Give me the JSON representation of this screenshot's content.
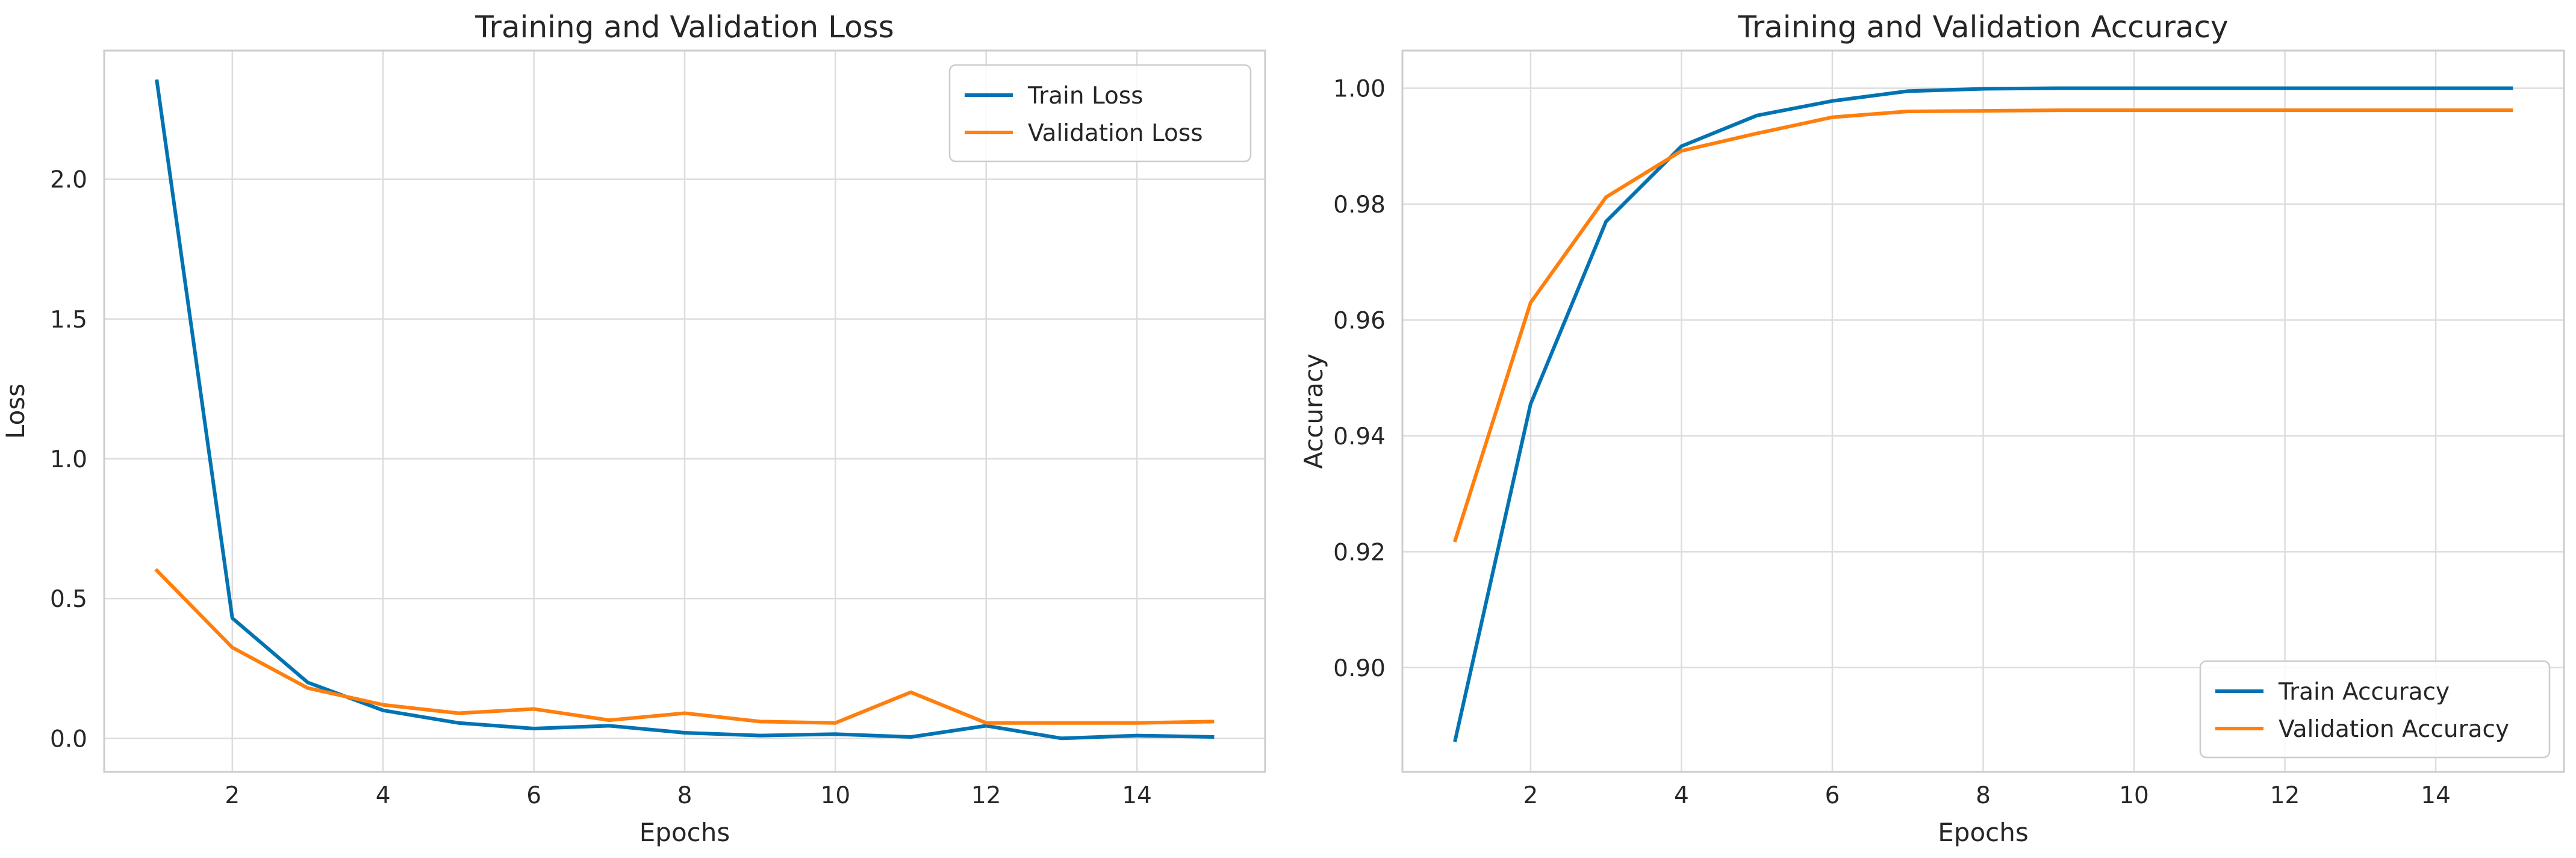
{
  "chart_data": [
    {
      "type": "line",
      "title": "Training and Validation Loss",
      "xlabel": "Epochs",
      "ylabel": "Loss",
      "xlim": [
        0.3,
        15.7
      ],
      "ylim": [
        -0.12,
        2.46
      ],
      "xticks": [
        2,
        4,
        6,
        8,
        10,
        12,
        14
      ],
      "xtick_labels": [
        "2",
        "4",
        "6",
        "8",
        "10",
        "12",
        "14"
      ],
      "yticks": [
        0.0,
        0.5,
        1.0,
        1.5,
        2.0
      ],
      "ytick_labels": [
        "0.0",
        "0.5",
        "1.0",
        "1.5",
        "2.0"
      ],
      "grid": true,
      "legend": "top-right",
      "x": [
        1,
        2,
        3,
        4,
        5,
        6,
        7,
        8,
        9,
        10,
        11,
        12,
        13,
        14,
        15
      ],
      "series": [
        {
          "name": "Train Loss",
          "color": "#0173b2",
          "values": [
            2.35,
            0.43,
            0.2,
            0.1,
            0.055,
            0.035,
            0.045,
            0.02,
            0.01,
            0.015,
            0.005,
            0.045,
            0.0,
            0.01,
            0.005
          ]
        },
        {
          "name": "Validation Loss",
          "color": "#ff7f0e",
          "values": [
            0.6,
            0.325,
            0.18,
            0.12,
            0.09,
            0.105,
            0.065,
            0.09,
            0.06,
            0.055,
            0.165,
            0.055,
            0.055,
            0.055,
            0.06
          ]
        }
      ]
    },
    {
      "type": "line",
      "title": "Training and Validation Accuracy",
      "xlabel": "Epochs",
      "ylabel": "Accuracy",
      "xlim": [
        0.3,
        15.7
      ],
      "ylim": [
        0.882,
        1.0065
      ],
      "xticks": [
        2,
        4,
        6,
        8,
        10,
        12,
        14
      ],
      "xtick_labels": [
        "2",
        "4",
        "6",
        "8",
        "10",
        "12",
        "14"
      ],
      "yticks": [
        0.9,
        0.92,
        0.94,
        0.96,
        0.98,
        1.0
      ],
      "ytick_labels": [
        "0.90",
        "0.92",
        "0.94",
        "0.96",
        "0.98",
        "1.00"
      ],
      "grid": true,
      "legend": "bottom-right",
      "x": [
        1,
        2,
        3,
        4,
        5,
        6,
        7,
        8,
        9,
        10,
        11,
        12,
        13,
        14,
        15
      ],
      "series": [
        {
          "name": "Train Accuracy",
          "color": "#0173b2",
          "values": [
            0.8875,
            0.9455,
            0.977,
            0.99,
            0.9953,
            0.9978,
            0.9995,
            0.9999,
            1.0,
            1.0,
            1.0,
            1.0,
            1.0,
            1.0,
            1.0
          ]
        },
        {
          "name": "Validation Accuracy",
          "color": "#ff7f0e",
          "values": [
            0.922,
            0.963,
            0.9812,
            0.9892,
            0.9922,
            0.995,
            0.996,
            0.9961,
            0.9962,
            0.9962,
            0.9962,
            0.9962,
            0.9962,
            0.9962,
            0.9962
          ]
        }
      ]
    }
  ]
}
